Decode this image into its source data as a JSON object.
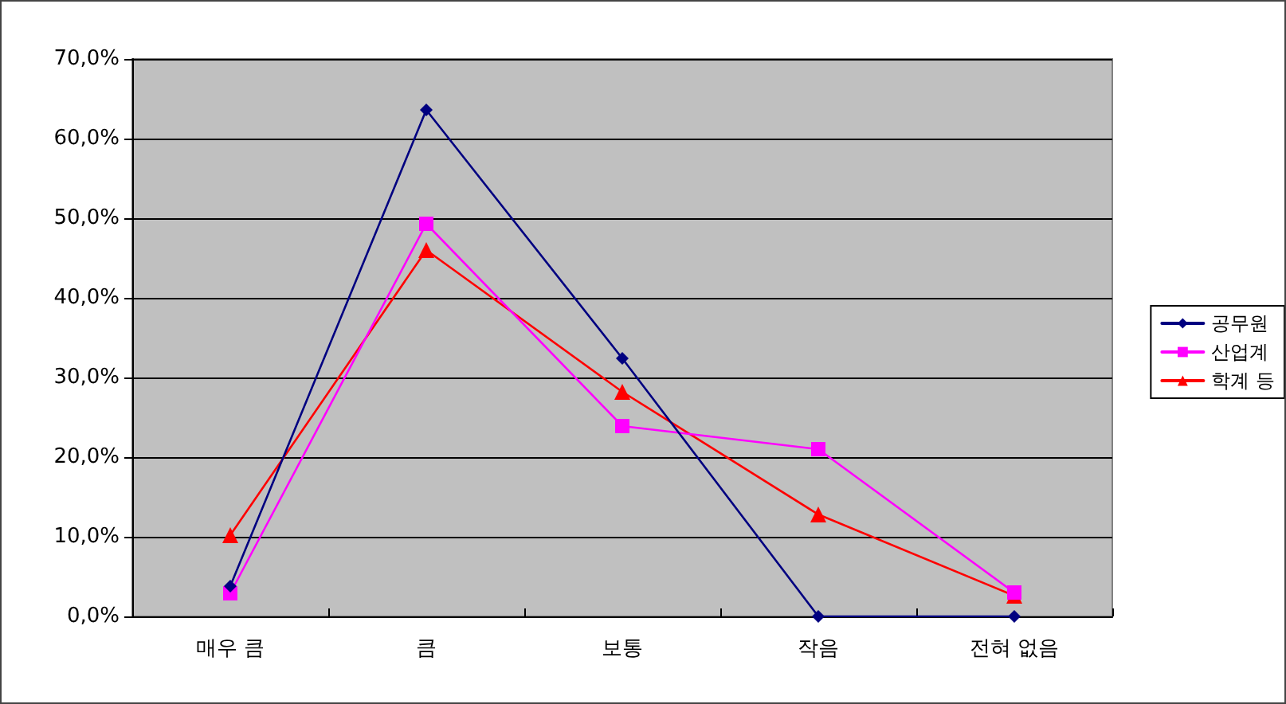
{
  "chart_data": {
    "type": "line",
    "categories": [
      "매우 큼",
      "큼",
      "보통",
      "작음",
      "전혀 없음"
    ],
    "series": [
      {
        "name": "공무원",
        "color": "#000080",
        "marker": "diamond",
        "values": [
          3.8,
          63.6,
          32.4,
          0,
          0
        ]
      },
      {
        "name": "산업계",
        "color": "#ff00ff",
        "marker": "square",
        "values": [
          2.9,
          49.3,
          23.9,
          21.0,
          3.0
        ]
      },
      {
        "name": "학계 등",
        "color": "#ff0000",
        "marker": "triangle",
        "values": [
          10.2,
          46.0,
          28.2,
          12.8,
          2.6
        ]
      }
    ],
    "ylim": [
      0,
      70
    ],
    "yticks": [
      {
        "value": 0,
        "label": "0,0%"
      },
      {
        "value": 10,
        "label": "10,0%"
      },
      {
        "value": 20,
        "label": "20,0%"
      },
      {
        "value": 30,
        "label": "30,0%"
      },
      {
        "value": 40,
        "label": "40,0%"
      },
      {
        "value": 50,
        "label": "50,0%"
      },
      {
        "value": 60,
        "label": "60,0%"
      },
      {
        "value": 70,
        "label": "70,0%"
      }
    ],
    "grid": "y",
    "legend": "right",
    "line_style": "solid"
  }
}
